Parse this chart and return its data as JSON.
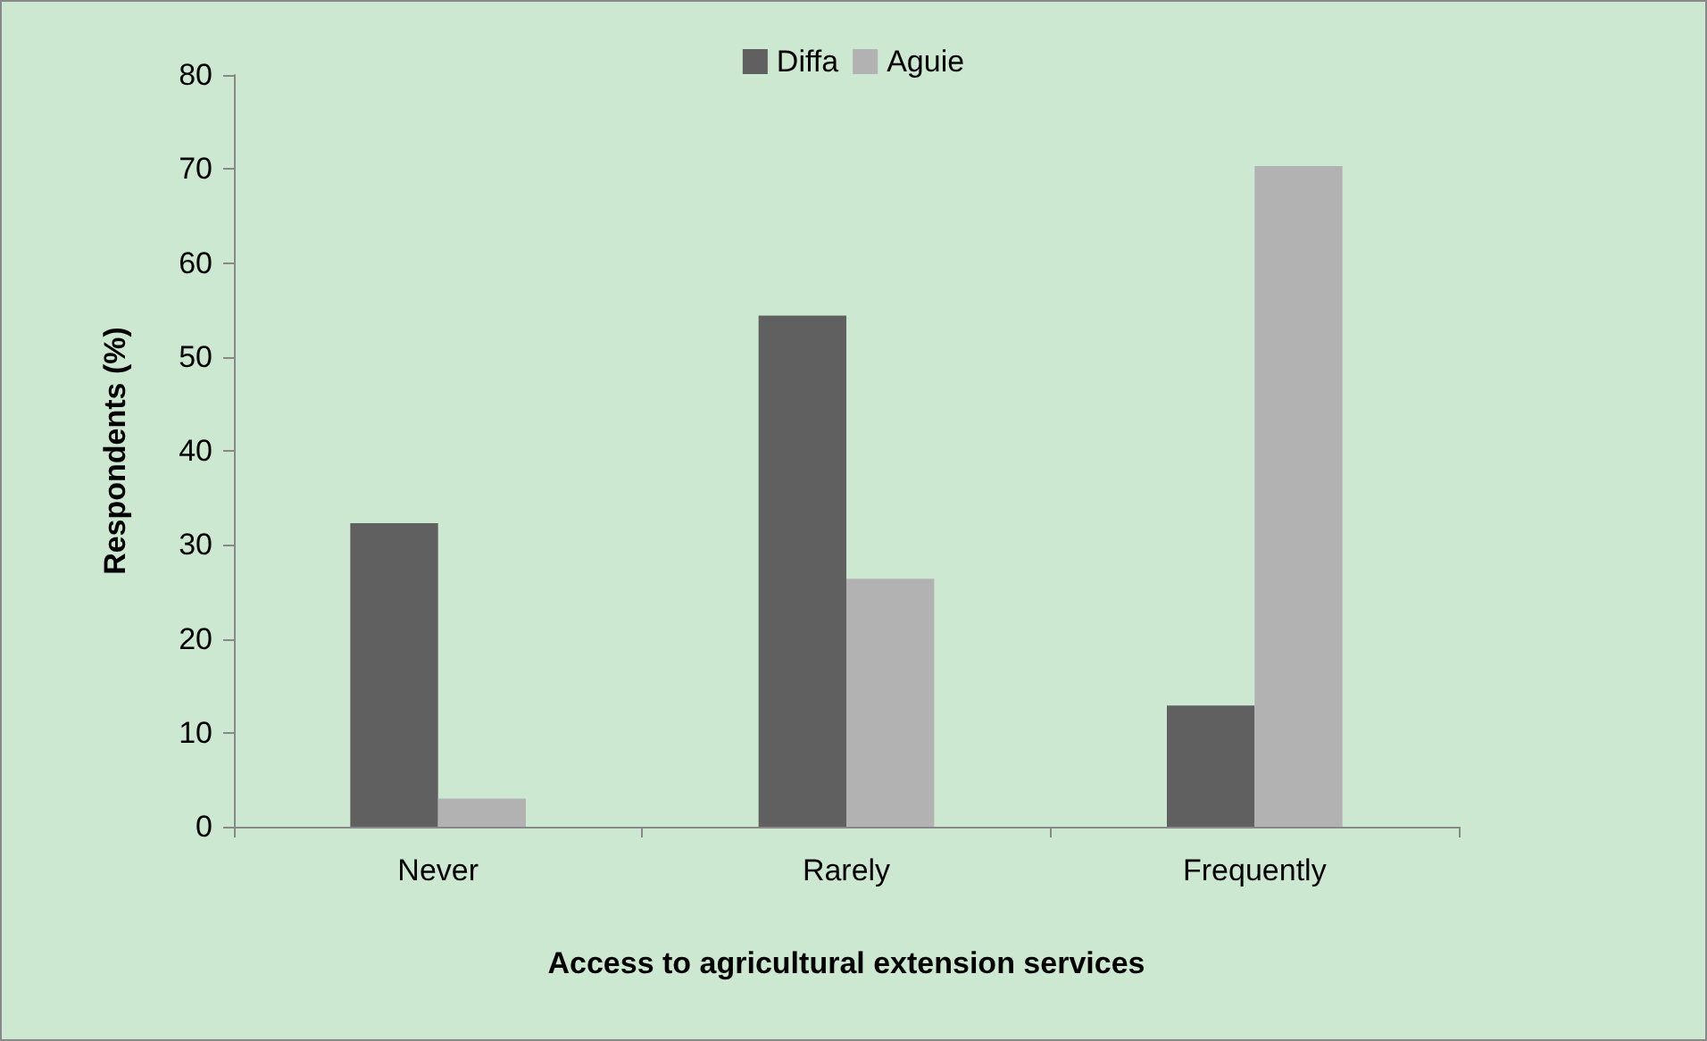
{
  "chart_data": {
    "type": "bar",
    "xlabel": "Access to agricultural extension services",
    "ylabel": "Respondents (%)",
    "categories": [
      "Never",
      "Rarely",
      "Frequently"
    ],
    "series": [
      {
        "name": "Diffa",
        "color": "#606060",
        "values": [
          32.3,
          54.4,
          12.9
        ]
      },
      {
        "name": "Aguie",
        "color": "#b2b2b2",
        "values": [
          3.0,
          26.4,
          70.3
        ]
      }
    ],
    "ylim": [
      0,
      80
    ],
    "yticks": [
      0,
      10,
      20,
      30,
      40,
      50,
      60,
      70,
      80
    ],
    "grid": false,
    "legend": "top"
  }
}
